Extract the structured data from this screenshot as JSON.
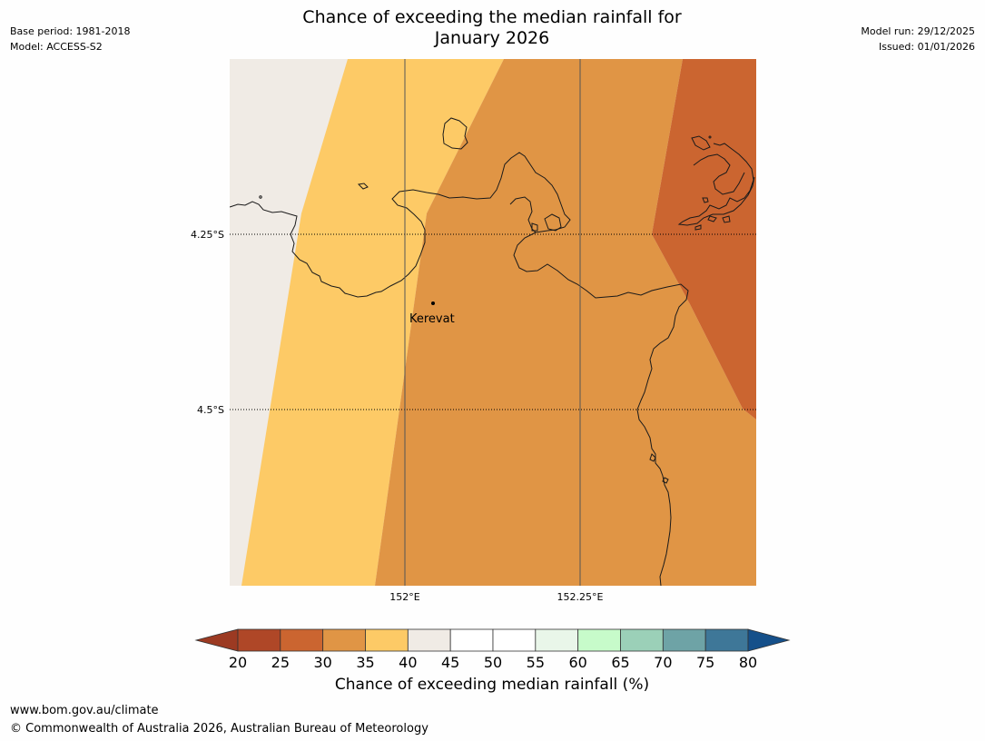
{
  "header": {
    "title_line1": "Chance of exceeding the median rainfall for",
    "title_line2": "January 2026",
    "base_period": "Base period: 1981-2018",
    "model": "Model: ACCESS-S2",
    "model_run": "Model run: 29/12/2025",
    "issued": "Issued: 01/01/2026"
  },
  "map": {
    "latitude_labels": [
      "4.25°S",
      "4.5°S"
    ],
    "longitude_labels": [
      "152°E",
      "152.25°E"
    ],
    "places": [
      {
        "name": "Kerevat"
      }
    ],
    "fill_colors": {
      "band_40_45": "#f0ebe5",
      "band_35_40": "#fdca66",
      "band_30_35": "#e09545",
      "band_25_30": "#cb6530"
    }
  },
  "colorbar": {
    "ticks": [
      "20",
      "25",
      "30",
      "35",
      "40",
      "45",
      "50",
      "55",
      "60",
      "65",
      "70",
      "75",
      "80"
    ],
    "low_extension_color": "#9c3a22",
    "high_extension_color": "#15508a",
    "colors": [
      "#af4727",
      "#cb6530",
      "#e09545",
      "#fdca66",
      "#f0ebe5",
      "#ffffff",
      "#ffffff",
      "#e9f6e9",
      "#c7fbca",
      "#9bd0b8",
      "#6ea3a6",
      "#3e7798"
    ],
    "label": "Chance of exceeding median rainfall (%)"
  },
  "footer": {
    "url": "www.bom.gov.au/climate",
    "copyright": "© Commonwealth of Australia 2026, Australian Bureau of Meteorology"
  }
}
